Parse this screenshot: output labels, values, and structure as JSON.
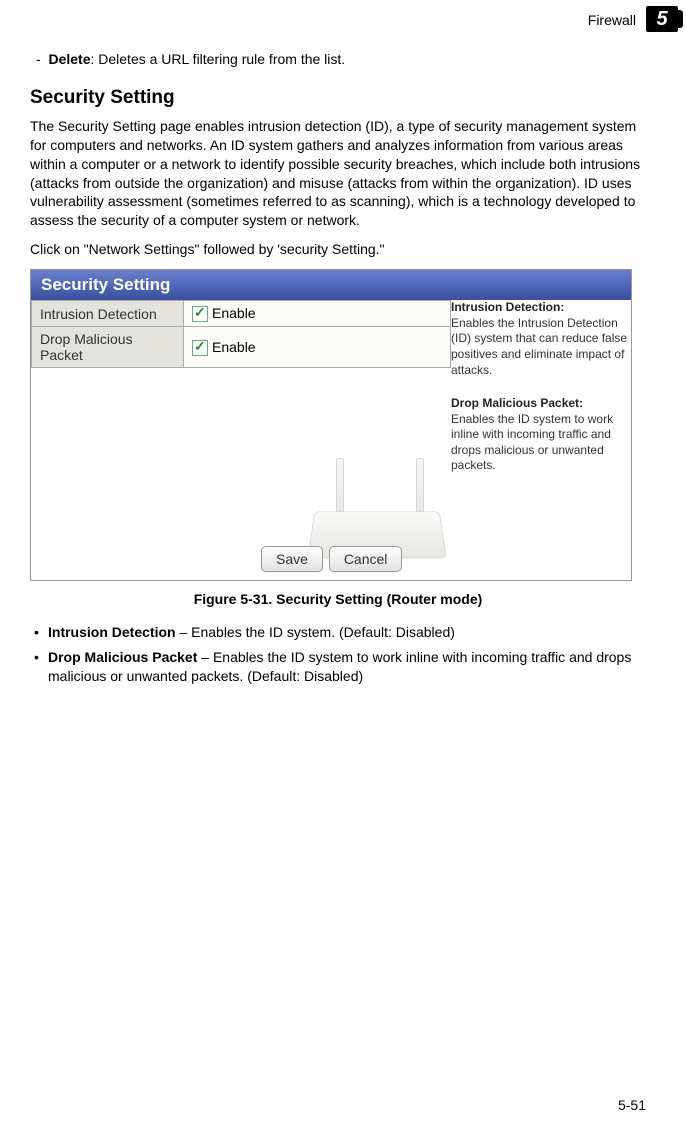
{
  "header": {
    "section": "Firewall",
    "chapter_num": "5"
  },
  "top_bullet": {
    "label": "Delete",
    "text": ": Deletes a URL filtering rule from the list."
  },
  "heading": "Security Setting",
  "para1": "The Security Setting page enables intrusion detection (ID), a type of security management system for computers and networks. An ID system gathers and analyzes information from various areas within a computer or a network to identify possible security breaches, which include both intrusions (attacks from outside the organization) and misuse (attacks from within the organization). ID uses vulnerability assessment (sometimes referred to as scanning), which is a technology developed to assess the security of a computer system or network.",
  "para2": "Click on \"Network Settings\" followed by 'security Setting.\"",
  "screenshot": {
    "title": "Security Setting",
    "rows": [
      {
        "label": "Intrusion Detection",
        "value": "Enable"
      },
      {
        "label": "Drop Malicious Packet",
        "value": "Enable"
      }
    ],
    "help": {
      "h1": "Intrusion Detection:",
      "t1": "Enables the Intrusion Detection (ID) system that can reduce false positives and eliminate impact of attacks.",
      "h2": "Drop Malicious Packet:",
      "t2": "Enables the ID system to work inline with incoming traffic and drops malicious or unwanted packets."
    },
    "buttons": {
      "save": "Save",
      "cancel": "Cancel"
    },
    "colors": {
      "titlebar_start": "#6a7fcf",
      "titlebar_end": "#3a4f9f",
      "row_label_bg": "#e4e2dd",
      "row_value_bg": "#fbfbf8",
      "check_color": "#2a8a2a"
    }
  },
  "figcap": "Figure 5-31.   Security Setting (Router mode)",
  "list": [
    {
      "bold": "Intrusion Detection",
      "text": " – Enables the ID system. (Default: Disabled)"
    },
    {
      "bold": "Drop Malicious Packet",
      "text": " – Enables the ID system to work inline with incoming traffic and drops malicious or unwanted packets. (Default: Disabled)"
    }
  ],
  "page_num": "5-51"
}
